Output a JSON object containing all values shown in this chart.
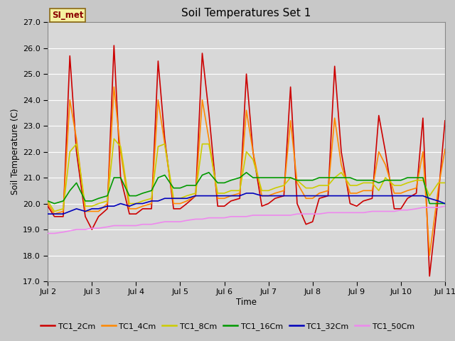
{
  "title": "Soil Temperatures Set 1",
  "xlabel": "Time",
  "ylabel": "Soil Temperature (C)",
  "ylim": [
    17.0,
    27.0
  ],
  "yticks": [
    17.0,
    18.0,
    19.0,
    20.0,
    21.0,
    22.0,
    23.0,
    24.0,
    25.0,
    26.0,
    27.0
  ],
  "background_color": "#c8c8c8",
  "plot_bg_color": "#d8d8d8",
  "annotation_text": "SI_met",
  "annotation_bg": "#f5f0a0",
  "annotation_border": "#8b6914",
  "annotation_text_color": "#8b0000",
  "series_colors": {
    "TC1_2Cm": "#cc0000",
    "TC1_4Cm": "#ff8800",
    "TC1_8Cm": "#cccc00",
    "TC1_16Cm": "#009900",
    "TC1_32Cm": "#0000bb",
    "TC1_50Cm": "#ee88ee"
  },
  "x_day_starts": [
    2,
    3,
    4,
    5,
    6,
    7,
    8,
    9,
    10,
    11
  ],
  "series_names": [
    "TC1_2Cm",
    "TC1_4Cm",
    "TC1_8Cm",
    "TC1_16Cm",
    "TC1_32Cm",
    "TC1_50Cm"
  ],
  "series": {
    "TC1_2Cm": {
      "times": [
        0.0,
        0.15,
        0.35,
        0.5,
        0.65,
        0.85,
        1.0,
        1.15,
        1.35,
        1.5,
        1.65,
        1.85,
        2.0,
        2.15,
        2.35,
        2.5,
        2.65,
        2.85,
        3.0,
        3.15,
        3.35,
        3.5,
        3.65,
        3.85,
        4.0,
        4.15,
        4.35,
        4.5,
        4.65,
        4.85,
        5.0,
        5.15,
        5.35,
        5.5,
        5.65,
        5.85,
        6.0,
        6.15,
        6.35,
        6.5,
        6.65,
        6.85,
        7.0,
        7.15,
        7.35,
        7.5,
        7.65,
        7.85,
        8.0,
        8.15,
        8.35,
        8.5,
        8.65,
        8.85,
        9.0
      ],
      "values": [
        19.9,
        19.5,
        19.5,
        25.7,
        22.0,
        19.5,
        19.0,
        19.5,
        19.8,
        26.1,
        21.0,
        19.6,
        19.6,
        19.8,
        19.8,
        25.5,
        22.5,
        19.8,
        19.8,
        20.0,
        20.3,
        25.8,
        23.5,
        19.9,
        19.9,
        20.1,
        20.2,
        25.0,
        22.0,
        19.9,
        20.0,
        20.2,
        20.3,
        24.5,
        20.0,
        19.2,
        19.3,
        20.2,
        20.3,
        25.3,
        22.0,
        20.0,
        19.9,
        20.1,
        20.2,
        23.4,
        22.0,
        19.8,
        19.8,
        20.2,
        20.4,
        23.3,
        17.2,
        20.3,
        23.2
      ]
    },
    "TC1_4Cm": {
      "times": [
        0.0,
        0.15,
        0.35,
        0.5,
        0.65,
        0.85,
        1.0,
        1.15,
        1.35,
        1.5,
        1.65,
        1.85,
        2.0,
        2.15,
        2.35,
        2.5,
        2.65,
        2.85,
        3.0,
        3.15,
        3.35,
        3.5,
        3.65,
        3.85,
        4.0,
        4.15,
        4.35,
        4.5,
        4.65,
        4.85,
        5.0,
        5.15,
        5.35,
        5.5,
        5.65,
        5.85,
        6.0,
        6.15,
        6.35,
        6.5,
        6.65,
        6.85,
        7.0,
        7.15,
        7.35,
        7.5,
        7.65,
        7.85,
        8.0,
        8.15,
        8.35,
        8.5,
        8.65,
        8.85,
        9.0
      ],
      "values": [
        20.0,
        19.6,
        19.7,
        24.0,
        22.5,
        19.7,
        19.7,
        19.7,
        20.0,
        24.5,
        22.0,
        19.8,
        19.8,
        19.9,
        20.0,
        24.0,
        22.3,
        20.0,
        20.0,
        20.1,
        20.3,
        24.0,
        22.5,
        20.2,
        20.2,
        20.3,
        20.4,
        23.6,
        22.0,
        20.3,
        20.3,
        20.4,
        20.5,
        23.2,
        20.8,
        20.2,
        20.2,
        20.4,
        20.5,
        23.3,
        21.5,
        20.4,
        20.4,
        20.5,
        20.5,
        22.0,
        21.5,
        20.4,
        20.4,
        20.5,
        20.6,
        22.0,
        18.0,
        20.6,
        22.1
      ]
    },
    "TC1_8Cm": {
      "times": [
        0.0,
        0.15,
        0.35,
        0.5,
        0.65,
        0.85,
        1.0,
        1.15,
        1.35,
        1.5,
        1.65,
        1.85,
        2.0,
        2.15,
        2.35,
        2.5,
        2.65,
        2.85,
        3.0,
        3.15,
        3.35,
        3.5,
        3.65,
        3.85,
        4.0,
        4.15,
        4.35,
        4.5,
        4.65,
        4.85,
        5.0,
        5.15,
        5.35,
        5.5,
        5.65,
        5.85,
        6.0,
        6.15,
        6.35,
        6.5,
        6.65,
        6.85,
        7.0,
        7.15,
        7.35,
        7.5,
        7.65,
        7.85,
        8.0,
        8.15,
        8.35,
        8.5,
        8.65,
        8.85,
        9.0
      ],
      "values": [
        20.1,
        19.7,
        19.8,
        22.0,
        22.3,
        19.9,
        19.9,
        20.0,
        20.1,
        22.5,
        22.2,
        20.0,
        20.0,
        20.1,
        20.2,
        22.2,
        22.3,
        20.2,
        20.2,
        20.3,
        20.4,
        22.3,
        22.3,
        20.4,
        20.4,
        20.5,
        20.5,
        22.0,
        21.7,
        20.5,
        20.5,
        20.6,
        20.7,
        21.0,
        20.9,
        20.6,
        20.6,
        20.7,
        20.7,
        21.0,
        21.2,
        20.7,
        20.7,
        20.8,
        20.8,
        20.5,
        21.0,
        20.7,
        20.7,
        20.8,
        20.9,
        20.9,
        20.3,
        20.8,
        20.8
      ]
    },
    "TC1_16Cm": {
      "times": [
        0.0,
        0.15,
        0.35,
        0.5,
        0.65,
        0.85,
        1.0,
        1.15,
        1.35,
        1.5,
        1.65,
        1.85,
        2.0,
        2.15,
        2.35,
        2.5,
        2.65,
        2.85,
        3.0,
        3.15,
        3.35,
        3.5,
        3.65,
        3.85,
        4.0,
        4.15,
        4.35,
        4.5,
        4.65,
        4.85,
        5.0,
        5.15,
        5.35,
        5.5,
        5.65,
        5.85,
        6.0,
        6.15,
        6.35,
        6.5,
        6.65,
        6.85,
        7.0,
        7.15,
        7.35,
        7.5,
        7.65,
        7.85,
        8.0,
        8.15,
        8.35,
        8.5,
        8.65,
        8.85,
        9.0
      ],
      "values": [
        20.1,
        20.0,
        20.1,
        20.5,
        20.8,
        20.1,
        20.1,
        20.2,
        20.3,
        21.0,
        21.0,
        20.3,
        20.3,
        20.4,
        20.5,
        21.0,
        21.1,
        20.6,
        20.6,
        20.7,
        20.7,
        21.1,
        21.2,
        20.8,
        20.8,
        20.9,
        21.0,
        21.2,
        21.0,
        21.0,
        21.0,
        21.0,
        21.0,
        21.0,
        20.9,
        20.9,
        20.9,
        21.0,
        21.0,
        21.0,
        21.0,
        21.0,
        20.9,
        20.9,
        20.9,
        20.8,
        20.9,
        20.9,
        20.9,
        21.0,
        21.0,
        21.0,
        20.0,
        20.0,
        20.0
      ]
    },
    "TC1_32Cm": {
      "times": [
        0.0,
        0.15,
        0.35,
        0.5,
        0.65,
        0.85,
        1.0,
        1.15,
        1.35,
        1.5,
        1.65,
        1.85,
        2.0,
        2.15,
        2.35,
        2.5,
        2.65,
        2.85,
        3.0,
        3.15,
        3.35,
        3.5,
        3.65,
        3.85,
        4.0,
        4.15,
        4.35,
        4.5,
        4.65,
        4.85,
        5.0,
        5.15,
        5.35,
        5.5,
        5.65,
        5.85,
        6.0,
        6.15,
        6.35,
        6.5,
        6.65,
        6.85,
        7.0,
        7.15,
        7.35,
        7.5,
        7.65,
        7.85,
        8.0,
        8.15,
        8.35,
        8.5,
        8.65,
        8.85,
        9.0
      ],
      "values": [
        19.6,
        19.6,
        19.6,
        19.7,
        19.8,
        19.7,
        19.8,
        19.8,
        19.9,
        19.9,
        20.0,
        19.9,
        20.0,
        20.0,
        20.1,
        20.1,
        20.2,
        20.2,
        20.2,
        20.2,
        20.3,
        20.3,
        20.3,
        20.3,
        20.3,
        20.3,
        20.3,
        20.4,
        20.4,
        20.3,
        20.3,
        20.3,
        20.3,
        20.3,
        20.3,
        20.3,
        20.3,
        20.3,
        20.3,
        20.3,
        20.3,
        20.3,
        20.3,
        20.3,
        20.3,
        20.3,
        20.3,
        20.3,
        20.3,
        20.3,
        20.3,
        20.3,
        20.2,
        20.1,
        20.0
      ]
    },
    "TC1_50Cm": {
      "times": [
        0.0,
        0.15,
        0.35,
        0.5,
        0.65,
        0.85,
        1.0,
        1.15,
        1.35,
        1.5,
        1.65,
        1.85,
        2.0,
        2.15,
        2.35,
        2.5,
        2.65,
        2.85,
        3.0,
        3.15,
        3.35,
        3.5,
        3.65,
        3.85,
        4.0,
        4.15,
        4.35,
        4.5,
        4.65,
        4.85,
        5.0,
        5.15,
        5.35,
        5.5,
        5.65,
        5.85,
        6.0,
        6.15,
        6.35,
        6.5,
        6.65,
        6.85,
        7.0,
        7.15,
        7.35,
        7.5,
        7.65,
        7.85,
        8.0,
        8.15,
        8.35,
        8.5,
        8.65,
        8.85,
        9.0
      ],
      "values": [
        18.85,
        18.85,
        18.9,
        18.95,
        19.0,
        19.0,
        19.05,
        19.05,
        19.1,
        19.15,
        19.15,
        19.15,
        19.15,
        19.2,
        19.2,
        19.25,
        19.3,
        19.3,
        19.3,
        19.35,
        19.4,
        19.4,
        19.45,
        19.45,
        19.45,
        19.5,
        19.5,
        19.5,
        19.55,
        19.55,
        19.55,
        19.55,
        19.55,
        19.55,
        19.6,
        19.6,
        19.6,
        19.6,
        19.65,
        19.65,
        19.65,
        19.65,
        19.65,
        19.65,
        19.7,
        19.7,
        19.7,
        19.7,
        19.75,
        19.75,
        19.8,
        19.85,
        19.85,
        19.85,
        19.9
      ]
    }
  }
}
